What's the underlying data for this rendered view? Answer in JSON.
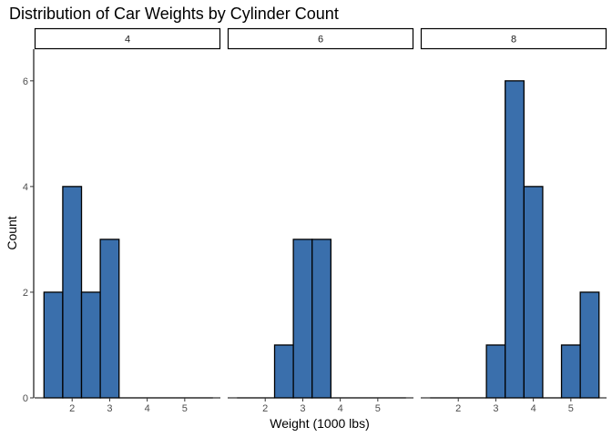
{
  "chart_data": {
    "type": "bar",
    "title": "Distribution of Car Weights by Cylinder Count",
    "xlabel": "Weight (1000 lbs)",
    "ylabel": "Count",
    "x_ticks": [
      2,
      3,
      4,
      5
    ],
    "y_ticks": [
      0,
      2,
      4,
      6
    ],
    "xlim": [
      1.0,
      5.95
    ],
    "ylim": [
      0,
      6.6
    ],
    "bin_width": 0.5,
    "bin_starts": [
      1.25,
      1.75,
      2.25,
      2.75,
      3.25,
      3.75,
      4.25,
      4.75,
      5.25
    ],
    "colors": {
      "fill": "#3a6fac",
      "stroke": "#000000"
    },
    "facets": [
      {
        "label": "4",
        "counts": [
          2,
          4,
          2,
          3,
          0,
          0,
          0,
          0,
          0
        ]
      },
      {
        "label": "6",
        "counts": [
          0,
          0,
          1,
          3,
          3,
          0,
          0,
          0,
          0
        ]
      },
      {
        "label": "8",
        "counts": [
          0,
          0,
          0,
          1,
          6,
          4,
          0,
          1,
          2
        ]
      }
    ]
  }
}
